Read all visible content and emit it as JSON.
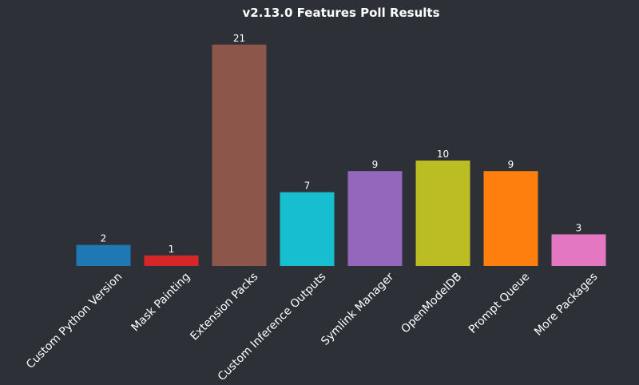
{
  "chart_data": {
    "type": "bar",
    "title": "v2.13.0 Features Poll Results",
    "xlabel": "",
    "ylabel": "",
    "categories": [
      "Custom Python Version",
      "Mask Painting",
      "Extension Packs",
      "Custom Inference Outputs",
      "Symlink Manager",
      "OpenModelDB",
      "Prompt Queue",
      "More Packages"
    ],
    "values": [
      2,
      1,
      21,
      7,
      9,
      10,
      9,
      3
    ],
    "colors": [
      "#1f77b4",
      "#d62728",
      "#8c564b",
      "#17becf",
      "#9467bd",
      "#bcbd22",
      "#ff7f0e",
      "#e377c2"
    ],
    "ylim": [
      0,
      22
    ],
    "grid": false,
    "legend": "none",
    "background": "#2d3036",
    "text_color": "#ffffff"
  }
}
